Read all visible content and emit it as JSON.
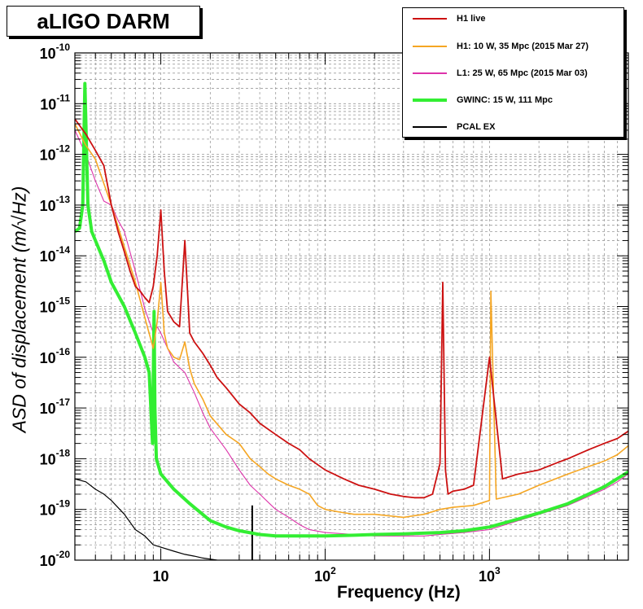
{
  "header": {
    "title": "aLIGO DARM"
  },
  "chart_data": {
    "type": "line",
    "title": "aLIGO DARM",
    "xlabel": "Frequency (Hz)",
    "ylabel_prefix": "ASD of displacement ",
    "ylabel_unit": "(m/√Hz)",
    "xscale": "log",
    "yscale": "log",
    "xlim": [
      3,
      7000
    ],
    "ylim": [
      1e-20,
      1e-10
    ],
    "grid": true,
    "legend_position": "top-right",
    "x_ticks": [
      {
        "value": 10,
        "base": "10",
        "exp": ""
      },
      {
        "value": 100,
        "base": "10",
        "exp": "2"
      },
      {
        "value": 1000,
        "base": "10",
        "exp": "3"
      }
    ],
    "y_ticks": [
      {
        "value": 1e-20,
        "base": "10",
        "exp": "-20"
      },
      {
        "value": 1e-19,
        "base": "10",
        "exp": "-19"
      },
      {
        "value": 1e-18,
        "base": "10",
        "exp": "-18"
      },
      {
        "value": 1e-17,
        "base": "10",
        "exp": "-17"
      },
      {
        "value": 1e-16,
        "base": "10",
        "exp": "-16"
      },
      {
        "value": 1e-15,
        "base": "10",
        "exp": "-15"
      },
      {
        "value": 1e-14,
        "base": "10",
        "exp": "-14"
      },
      {
        "value": 1e-13,
        "base": "10",
        "exp": "-13"
      },
      {
        "value": 1e-12,
        "base": "10",
        "exp": "-12"
      },
      {
        "value": 1e-11,
        "base": "10",
        "exp": "-11"
      },
      {
        "value": 1e-10,
        "base": "10",
        "exp": "-10"
      }
    ],
    "series": [
      {
        "name": "H1 live",
        "color": "#cc1111",
        "width": 1.8,
        "x": [
          3,
          3.5,
          4,
          4.5,
          5,
          5.5,
          6,
          6.5,
          7,
          7.5,
          8,
          8.5,
          9,
          9.5,
          10,
          10.5,
          11,
          12,
          13,
          14,
          15,
          16,
          18,
          20,
          22,
          25,
          30,
          35,
          40,
          50,
          60,
          70,
          80,
          100,
          130,
          160,
          200,
          250,
          300,
          350,
          400,
          450,
          500,
          520,
          540,
          560,
          600,
          700,
          800,
          1000,
          1200,
          1500,
          2000,
          2500,
          3000,
          4000,
          5000,
          6000,
          7000
        ],
        "y": [
          5e-12,
          2.5e-12,
          1.2e-12,
          6e-13,
          1e-13,
          3e-14,
          1.2e-14,
          5e-15,
          2.5e-15,
          2e-15,
          1.5e-15,
          1.2e-15,
          2.5e-15,
          1e-14,
          8e-14,
          5e-15,
          8e-16,
          5e-16,
          4e-16,
          2e-14,
          3e-16,
          2e-16,
          1.2e-16,
          7e-17,
          4e-17,
          2.5e-17,
          1.2e-17,
          8e-18,
          5e-18,
          3e-18,
          2e-18,
          1.5e-18,
          1e-18,
          6e-19,
          4e-19,
          3e-19,
          2.5e-19,
          2e-19,
          1.8e-19,
          1.7e-19,
          1.7e-19,
          2e-19,
          8e-19,
          3e-15,
          6e-19,
          2e-19,
          2.3e-19,
          2.5e-19,
          3e-19,
          1e-16,
          4e-19,
          5e-19,
          6e-19,
          8e-19,
          1e-18,
          1.5e-18,
          2e-18,
          2.5e-18,
          3.5e-18
        ]
      },
      {
        "name": "H1: 10 W, 35 Mpc (2015 Mar 27)",
        "color": "#f5a623",
        "width": 1.6,
        "x": [
          3,
          3.5,
          4,
          5,
          6,
          7,
          8,
          9,
          9.5,
          10,
          10.5,
          11,
          12,
          13,
          14,
          15,
          16,
          18,
          20,
          25,
          30,
          35,
          40,
          45,
          50,
          60,
          70,
          80,
          90,
          100,
          120,
          150,
          200,
          300,
          400,
          500,
          600,
          800,
          1000,
          1020,
          1100,
          1500,
          2000,
          3000,
          4000,
          5000,
          6000,
          7000
        ],
        "y": [
          4e-12,
          1.5e-12,
          8e-13,
          1e-13,
          1.5e-14,
          3e-15,
          6e-16,
          1.5e-16,
          5e-16,
          3e-15,
          3e-16,
          1.5e-16,
          1e-16,
          9e-17,
          2e-16,
          6e-17,
          3e-17,
          1.5e-17,
          7e-18,
          3e-18,
          2e-18,
          1e-18,
          7e-19,
          5e-19,
          4e-19,
          3e-19,
          2.5e-19,
          2e-19,
          1.2e-19,
          1e-19,
          9e-20,
          8e-20,
          8e-20,
          7e-20,
          8e-20,
          1e-19,
          1.1e-19,
          1.2e-19,
          1.5e-19,
          2e-15,
          1.6e-19,
          2e-19,
          3e-19,
          5e-19,
          7e-19,
          9e-19,
          1.2e-18,
          1.8e-18
        ]
      },
      {
        "name": "L1: 25 W, 65 Mpc (2015 Mar 03)",
        "color": "#dd33aa",
        "width": 1.1,
        "x": [
          3,
          3.5,
          4,
          4.5,
          5,
          5.5,
          6,
          7,
          8,
          9,
          9.5,
          10,
          11,
          12,
          14,
          16,
          18,
          20,
          25,
          30,
          35,
          40,
          50,
          60,
          70,
          80,
          100,
          150,
          200,
          300,
          400,
          500,
          700,
          1000,
          1500,
          2000,
          3000,
          4000,
          5000,
          6000,
          7000
        ],
        "y": [
          3e-12,
          1e-12,
          3e-13,
          1.2e-13,
          1e-13,
          5e-14,
          3e-14,
          5e-15,
          9e-16,
          3e-16,
          4e-16,
          3e-16,
          1.5e-16,
          8e-17,
          5e-17,
          2e-17,
          8e-18,
          4e-18,
          1.5e-18,
          6e-19,
          3e-19,
          2e-19,
          1e-19,
          7e-20,
          5e-20,
          4e-20,
          3.5e-20,
          3.2e-20,
          3e-20,
          3e-20,
          3e-20,
          3.2e-20,
          3.5e-20,
          4e-20,
          6e-20,
          8e-20,
          1.2e-19,
          1.8e-19,
          2.5e-19,
          3.5e-19,
          5e-19
        ]
      },
      {
        "name": "GWINC: 15 W, 111 Mpc",
        "color": "#33ee33",
        "width": 4,
        "x": [
          3,
          3.2,
          3.35,
          3.45,
          3.6,
          3.8,
          4,
          4.5,
          5,
          6,
          7,
          8,
          8.5,
          8.9,
          9.1,
          9.2,
          9.4,
          10,
          12,
          15,
          20,
          25,
          30,
          40,
          50,
          70,
          100,
          150,
          200,
          300,
          500,
          700,
          1000,
          1500,
          2000,
          3000,
          4000,
          5000,
          7000
        ],
        "y": [
          3e-14,
          3.5e-14,
          1e-13,
          2.5e-11,
          1e-13,
          3e-14,
          2e-14,
          8e-15,
          3e-15,
          1e-15,
          3e-16,
          1e-16,
          5e-17,
          2e-18,
          8e-16,
          1e-17,
          1e-18,
          5e-19,
          2.5e-19,
          1.3e-19,
          6e-20,
          4.5e-20,
          3.8e-20,
          3.2e-20,
          3e-20,
          3e-20,
          3e-20,
          3.1e-20,
          3.2e-20,
          3.3e-20,
          3.5e-20,
          3.8e-20,
          4.5e-20,
          6.5e-20,
          8.5e-20,
          1.3e-19,
          2e-19,
          2.8e-19,
          5.5e-19
        ]
      },
      {
        "name": "PCAL EX",
        "color": "#000000",
        "width": 1.2,
        "x": [
          3,
          3.5,
          4,
          4.5,
          5,
          6,
          7,
          8,
          9,
          10,
          12,
          14,
          16,
          18,
          20,
          22
        ],
        "y": [
          4e-19,
          3.5e-19,
          2.5e-19,
          2e-19,
          1.5e-19,
          8e-20,
          4e-20,
          3e-20,
          2e-20,
          1.8e-20,
          1.5e-20,
          1.3e-20,
          1.2e-20,
          1.1e-20,
          1.05e-20,
          1e-20
        ]
      }
    ],
    "vertical_lines": [
      {
        "x": 36,
        "color": "#000000"
      }
    ]
  }
}
